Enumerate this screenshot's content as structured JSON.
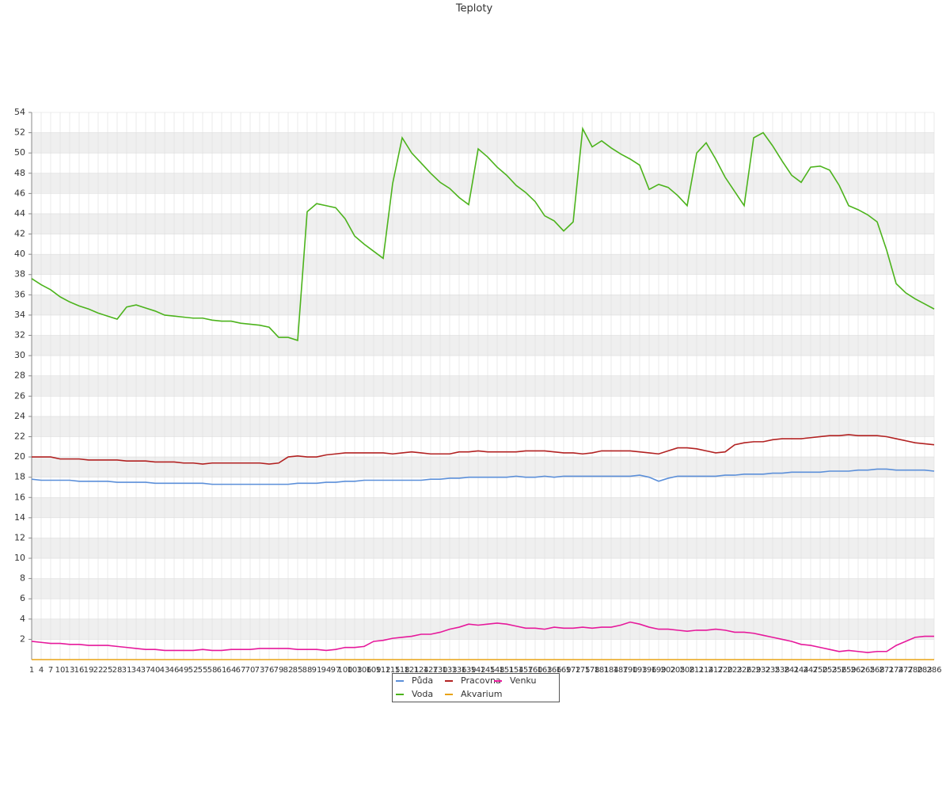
{
  "chart_data": {
    "type": "line",
    "title": "Teploty",
    "x": [
      1,
      4,
      7,
      10,
      13,
      16,
      19,
      22,
      25,
      28,
      31,
      34,
      37,
      40,
      43,
      46,
      49,
      52,
      55,
      58,
      61,
      64,
      67,
      70,
      73,
      76,
      79,
      82,
      85,
      88,
      91,
      94,
      97,
      100,
      103,
      106,
      109,
      112,
      115,
      118,
      121,
      124,
      127,
      130,
      133,
      136,
      139,
      142,
      145,
      148,
      151,
      154,
      157,
      160,
      163,
      166,
      169,
      172,
      175,
      178,
      181,
      184,
      187,
      190,
      193,
      196,
      199,
      202,
      205,
      208,
      211,
      214,
      217,
      220,
      223,
      226,
      229,
      232,
      235,
      238,
      241,
      244,
      247,
      250,
      253,
      256,
      259,
      262,
      265,
      268,
      271,
      274,
      277,
      280,
      283,
      286
    ],
    "xlim": [
      1,
      286
    ],
    "ylim": [
      0,
      54
    ],
    "yticks": [
      2,
      4,
      6,
      8,
      10,
      12,
      14,
      16,
      18,
      20,
      22,
      24,
      26,
      28,
      30,
      32,
      34,
      36,
      38,
      40,
      42,
      44,
      46,
      48,
      50,
      52,
      54
    ],
    "grid": true,
    "series": [
      {
        "name": "Půda",
        "color": "#5b8fd9",
        "values": [
          17.8,
          17.7,
          17.7,
          17.7,
          17.7,
          17.6,
          17.6,
          17.6,
          17.6,
          17.5,
          17.5,
          17.5,
          17.5,
          17.4,
          17.4,
          17.4,
          17.4,
          17.4,
          17.4,
          17.3,
          17.3,
          17.3,
          17.3,
          17.3,
          17.3,
          17.3,
          17.3,
          17.3,
          17.4,
          17.4,
          17.4,
          17.5,
          17.5,
          17.6,
          17.6,
          17.7,
          17.7,
          17.7,
          17.7,
          17.7,
          17.7,
          17.7,
          17.8,
          17.8,
          17.9,
          17.9,
          18.0,
          18.0,
          18.0,
          18.0,
          18.0,
          18.1,
          18.0,
          18.0,
          18.1,
          18.0,
          18.1,
          18.1,
          18.1,
          18.1,
          18.1,
          18.1,
          18.1,
          18.1,
          18.2,
          18.0,
          17.6,
          17.9,
          18.1,
          18.1,
          18.1,
          18.1,
          18.1,
          18.2,
          18.2,
          18.3,
          18.3,
          18.3,
          18.4,
          18.4,
          18.5,
          18.5,
          18.5,
          18.5,
          18.6,
          18.6,
          18.6,
          18.7,
          18.7,
          18.8,
          18.8,
          18.7,
          18.7,
          18.7,
          18.7,
          18.6
        ]
      },
      {
        "name": "Voda",
        "color": "#4cb31c",
        "values": [
          37.6,
          37.0,
          36.5,
          35.8,
          35.3,
          34.9,
          34.6,
          34.2,
          33.9,
          33.6,
          34.8,
          35.0,
          34.7,
          34.4,
          34.0,
          33.9,
          33.8,
          33.7,
          33.7,
          33.5,
          33.4,
          33.4,
          33.2,
          33.1,
          33.0,
          32.8,
          31.8,
          31.8,
          31.5,
          44.2,
          45.0,
          44.8,
          44.6,
          43.5,
          41.8,
          41.0,
          40.3,
          39.6,
          47.0,
          51.5,
          50.0,
          49.0,
          48.0,
          47.1,
          46.5,
          45.6,
          44.9,
          50.4,
          49.6,
          48.6,
          47.8,
          46.8,
          46.1,
          45.2,
          43.8,
          43.3,
          42.3,
          43.2,
          52.4,
          50.6,
          51.2,
          50.5,
          49.9,
          49.4,
          48.8,
          46.4,
          46.9,
          46.6,
          45.8,
          44.8,
          50.0,
          51.0,
          49.4,
          47.6,
          46.2,
          44.8,
          51.5,
          52.0,
          50.7,
          49.2,
          47.8,
          47.1,
          48.6,
          48.7,
          48.3,
          46.8,
          44.8,
          44.4,
          43.9,
          43.2,
          40.4,
          37.1,
          36.2,
          35.6,
          35.1,
          34.6
        ]
      },
      {
        "name": "Pracovna",
        "color": "#b22222",
        "values": [
          20.0,
          20.0,
          20.0,
          19.8,
          19.8,
          19.8,
          19.7,
          19.7,
          19.7,
          19.7,
          19.6,
          19.6,
          19.6,
          19.5,
          19.5,
          19.5,
          19.4,
          19.4,
          19.3,
          19.4,
          19.4,
          19.4,
          19.4,
          19.4,
          19.4,
          19.3,
          19.4,
          20.0,
          20.1,
          20.0,
          20.0,
          20.2,
          20.3,
          20.4,
          20.4,
          20.4,
          20.4,
          20.4,
          20.3,
          20.4,
          20.5,
          20.4,
          20.3,
          20.3,
          20.3,
          20.5,
          20.5,
          20.6,
          20.5,
          20.5,
          20.5,
          20.5,
          20.6,
          20.6,
          20.6,
          20.5,
          20.4,
          20.4,
          20.3,
          20.4,
          20.6,
          20.6,
          20.6,
          20.6,
          20.5,
          20.4,
          20.3,
          20.6,
          20.9,
          20.9,
          20.8,
          20.6,
          20.4,
          20.5,
          21.2,
          21.4,
          21.5,
          21.5,
          21.7,
          21.8,
          21.8,
          21.8,
          21.9,
          22.0,
          22.1,
          22.1,
          22.2,
          22.1,
          22.1,
          22.1,
          22.0,
          21.8,
          21.6,
          21.4,
          21.3,
          21.2
        ]
      },
      {
        "name": "Akvarium",
        "color": "#e8a317",
        "values": [
          0,
          0,
          0,
          0,
          0,
          0,
          0,
          0,
          0,
          0,
          0,
          0,
          0,
          0,
          0,
          0,
          0,
          0,
          0,
          0,
          0,
          0,
          0,
          0,
          0,
          0,
          0,
          0,
          0,
          0,
          0,
          0,
          0,
          0,
          0,
          0,
          0,
          0,
          0,
          0,
          0,
          0,
          0,
          0,
          0,
          0,
          0,
          0,
          0,
          0,
          0,
          0,
          0,
          0,
          0,
          0,
          0,
          0,
          0,
          0,
          0,
          0,
          0,
          0,
          0,
          0,
          0,
          0,
          0,
          0,
          0,
          0,
          0,
          0,
          0,
          0,
          0,
          0,
          0,
          0,
          0,
          0,
          0,
          0,
          0,
          0,
          0,
          0,
          0,
          0,
          0,
          0,
          0,
          0,
          0,
          0
        ]
      },
      {
        "name": "Venku",
        "color": "#e6199b",
        "values": [
          1.8,
          1.7,
          1.6,
          1.6,
          1.5,
          1.5,
          1.4,
          1.4,
          1.4,
          1.3,
          1.2,
          1.1,
          1.0,
          1.0,
          0.9,
          0.9,
          0.9,
          0.9,
          1.0,
          0.9,
          0.9,
          1.0,
          1.0,
          1.0,
          1.1,
          1.1,
          1.1,
          1.1,
          1.0,
          1.0,
          1.0,
          0.9,
          1.0,
          1.2,
          1.2,
          1.3,
          1.8,
          1.9,
          2.1,
          2.2,
          2.3,
          2.5,
          2.5,
          2.7,
          3.0,
          3.2,
          3.5,
          3.4,
          3.5,
          3.6,
          3.5,
          3.3,
          3.1,
          3.1,
          3.0,
          3.2,
          3.1,
          3.1,
          3.2,
          3.1,
          3.2,
          3.2,
          3.4,
          3.7,
          3.5,
          3.2,
          3.0,
          3.0,
          2.9,
          2.8,
          2.9,
          2.9,
          3.0,
          2.9,
          2.7,
          2.7,
          2.6,
          2.4,
          2.2,
          2.0,
          1.8,
          1.5,
          1.4,
          1.2,
          1.0,
          0.8,
          0.9,
          0.8,
          0.7,
          0.8,
          0.8,
          1.4,
          1.8,
          2.2,
          2.3,
          2.3
        ]
      }
    ]
  }
}
